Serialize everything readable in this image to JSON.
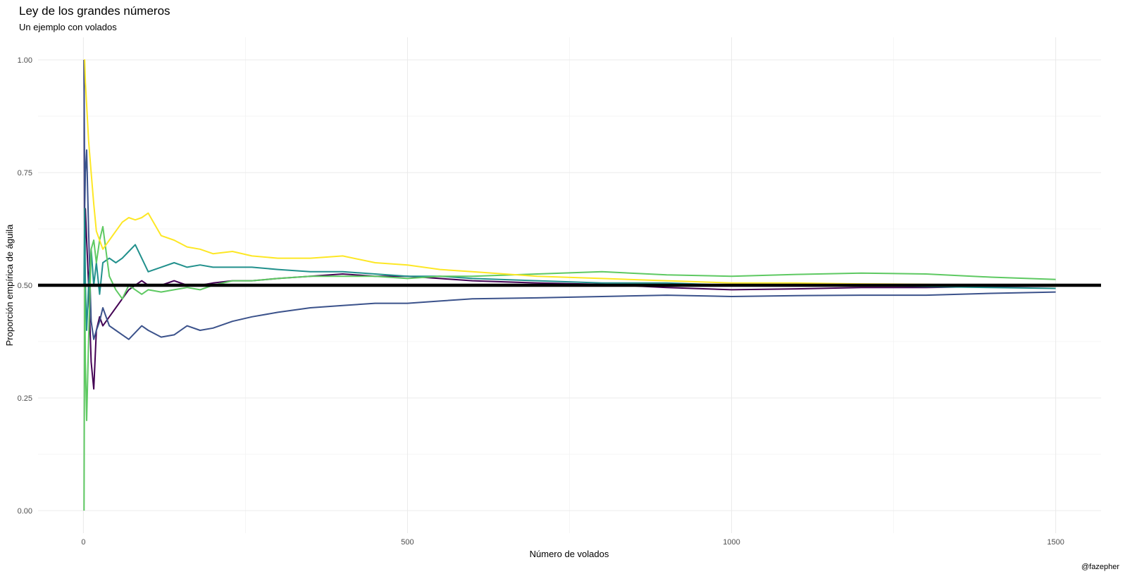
{
  "chart_data": {
    "type": "line",
    "title": "Ley de los grandes números",
    "subtitle": "Un ejemplo con volados",
    "caption": "@fazepher",
    "xlabel": "Número de volados",
    "ylabel": "Proporción empírica de águila",
    "xlim": [
      -70,
      1570
    ],
    "ylim": [
      -0.05,
      1.05
    ],
    "x_ticks": [
      0,
      500,
      1000,
      1500
    ],
    "x_tick_labels": [
      "0",
      "500",
      "1000",
      "1500"
    ],
    "y_ticks": [
      0,
      0.25,
      0.5,
      0.75,
      1
    ],
    "y_tick_labels": [
      "0.00",
      "0.25",
      "0.50",
      "0.75",
      "1.00"
    ],
    "grid": true,
    "reference_line": {
      "y": 0.5,
      "color": "#000000"
    },
    "series": [
      {
        "color": "#440154",
        "x": [
          1,
          2,
          3,
          5,
          8,
          12,
          16,
          20,
          25,
          30,
          40,
          50,
          60,
          70,
          80,
          90,
          100,
          120,
          140,
          160,
          180,
          200,
          230,
          260,
          300,
          350,
          400,
          450,
          500,
          550,
          600,
          700,
          800,
          900,
          1000,
          1100,
          1200,
          1300,
          1400,
          1500
        ],
        "y": [
          1.0,
          0.5,
          0.67,
          0.6,
          0.5,
          0.33,
          0.27,
          0.4,
          0.43,
          0.41,
          0.43,
          0.45,
          0.47,
          0.49,
          0.5,
          0.51,
          0.5,
          0.5,
          0.51,
          0.5,
          0.5,
          0.505,
          0.51,
          0.51,
          0.515,
          0.52,
          0.525,
          0.52,
          0.52,
          0.515,
          0.51,
          0.505,
          0.502,
          0.495,
          0.49,
          0.492,
          0.495,
          0.495,
          0.497,
          0.498
        ]
      },
      {
        "color": "#3b528b",
        "x": [
          1,
          2,
          3,
          5,
          8,
          12,
          16,
          20,
          25,
          30,
          40,
          50,
          60,
          70,
          80,
          90,
          100,
          120,
          140,
          160,
          180,
          200,
          230,
          260,
          300,
          350,
          400,
          450,
          500,
          550,
          600,
          700,
          800,
          900,
          1000,
          1100,
          1200,
          1300,
          1400,
          1500
        ],
        "y": [
          1.0,
          0.67,
          0.75,
          0.8,
          0.62,
          0.42,
          0.38,
          0.4,
          0.42,
          0.45,
          0.41,
          0.4,
          0.39,
          0.38,
          0.395,
          0.41,
          0.4,
          0.385,
          0.39,
          0.41,
          0.4,
          0.405,
          0.42,
          0.43,
          0.44,
          0.45,
          0.455,
          0.46,
          0.46,
          0.465,
          0.47,
          0.472,
          0.475,
          0.478,
          0.475,
          0.477,
          0.478,
          0.478,
          0.482,
          0.485
        ]
      },
      {
        "color": "#21908c",
        "x": [
          1,
          2,
          3,
          5,
          8,
          12,
          16,
          20,
          25,
          30,
          40,
          50,
          60,
          70,
          80,
          90,
          100,
          120,
          140,
          160,
          180,
          200,
          230,
          260,
          300,
          350,
          400,
          450,
          500,
          550,
          600,
          700,
          800,
          900,
          1000,
          1100,
          1200,
          1300,
          1400,
          1500
        ],
        "y": [
          0.5,
          0.67,
          0.5,
          0.4,
          0.5,
          0.58,
          0.5,
          0.55,
          0.48,
          0.55,
          0.56,
          0.55,
          0.56,
          0.575,
          0.59,
          0.56,
          0.53,
          0.54,
          0.55,
          0.54,
          0.545,
          0.54,
          0.54,
          0.54,
          0.535,
          0.53,
          0.53,
          0.525,
          0.52,
          0.52,
          0.515,
          0.51,
          0.505,
          0.505,
          0.5,
          0.502,
          0.5,
          0.497,
          0.495,
          0.493
        ]
      },
      {
        "color": "#5ec962",
        "x": [
          1,
          2,
          3,
          5,
          8,
          12,
          16,
          20,
          25,
          30,
          40,
          50,
          60,
          70,
          80,
          90,
          100,
          120,
          140,
          160,
          180,
          200,
          230,
          260,
          300,
          350,
          400,
          450,
          500,
          550,
          600,
          700,
          800,
          900,
          1000,
          1100,
          1200,
          1300,
          1400,
          1500
        ],
        "y": [
          0.0,
          0.5,
          0.33,
          0.2,
          0.38,
          0.58,
          0.6,
          0.55,
          0.6,
          0.63,
          0.52,
          0.49,
          0.47,
          0.5,
          0.49,
          0.48,
          0.49,
          0.485,
          0.49,
          0.495,
          0.49,
          0.5,
          0.51,
          0.51,
          0.515,
          0.52,
          0.52,
          0.52,
          0.515,
          0.52,
          0.52,
          0.525,
          0.53,
          0.523,
          0.52,
          0.524,
          0.527,
          0.525,
          0.518,
          0.513
        ]
      },
      {
        "color": "#fde725",
        "x": [
          1,
          2,
          3,
          5,
          8,
          12,
          16,
          20,
          25,
          30,
          40,
          50,
          60,
          70,
          80,
          90,
          100,
          120,
          140,
          160,
          180,
          200,
          230,
          260,
          300,
          350,
          400,
          450,
          500,
          550,
          600,
          700,
          800,
          900,
          1000,
          1100,
          1200,
          1300,
          1400,
          1500
        ],
        "y": [
          1.0,
          1.0,
          0.95,
          0.9,
          0.82,
          0.75,
          0.68,
          0.62,
          0.6,
          0.58,
          0.6,
          0.62,
          0.64,
          0.65,
          0.645,
          0.65,
          0.66,
          0.61,
          0.6,
          0.585,
          0.58,
          0.57,
          0.575,
          0.565,
          0.56,
          0.56,
          0.565,
          0.55,
          0.545,
          0.535,
          0.53,
          0.52,
          0.515,
          0.51,
          0.505,
          0.505,
          0.503,
          0.502,
          0.5,
          0.498
        ]
      }
    ]
  }
}
